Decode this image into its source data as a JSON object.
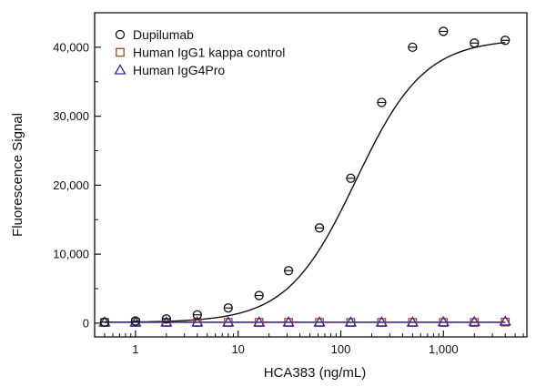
{
  "chart_data": {
    "type": "scatter",
    "title": "",
    "xlabel": "HCA383 (ng/mL)",
    "ylabel": "Fluorescence Signal",
    "x_scale": "log",
    "xlim": [
      0.4,
      6500
    ],
    "ylim": [
      -2000,
      45000
    ],
    "x_ticks": [
      1,
      10,
      100,
      1000
    ],
    "x_tick_labels": [
      "1",
      "10",
      "100",
      "1,000"
    ],
    "y_ticks": [
      0,
      10000,
      20000,
      30000,
      40000
    ],
    "y_tick_labels": [
      "0",
      "10,000",
      "20,000",
      "30,000",
      "40,000"
    ],
    "legend_position": "top-left",
    "grid": false,
    "series": [
      {
        "name": "Dupilumab",
        "marker": "circle",
        "color": "#111111",
        "fit_curve": true,
        "x": [
          0.5,
          1,
          2,
          4,
          8,
          16,
          31,
          62,
          125,
          250,
          500,
          1000,
          2000,
          4000
        ],
        "y": [
          150,
          300,
          600,
          1200,
          2200,
          4000,
          7600,
          13800,
          21000,
          32000,
          40000,
          42300,
          40600,
          41000
        ]
      },
      {
        "name": "Human IgG1 kappa control",
        "marker": "square",
        "color": "#c0392b",
        "fit_curve": true,
        "x": [
          0.5,
          1,
          2,
          4,
          8,
          16,
          31,
          62,
          125,
          250,
          500,
          1000,
          2000,
          4000
        ],
        "y": [
          100,
          100,
          100,
          100,
          100,
          100,
          100,
          100,
          100,
          100,
          100,
          100,
          100,
          150
        ]
      },
      {
        "name": "Human IgG4Pro",
        "marker": "triangle",
        "color": "#2e2a9c",
        "fit_curve": true,
        "x": [
          0.5,
          1,
          2,
          4,
          8,
          16,
          31,
          62,
          125,
          250,
          500,
          1000,
          2000,
          4000
        ],
        "y": [
          120,
          120,
          120,
          120,
          120,
          120,
          120,
          120,
          120,
          120,
          120,
          150,
          180,
          250
        ]
      }
    ]
  }
}
